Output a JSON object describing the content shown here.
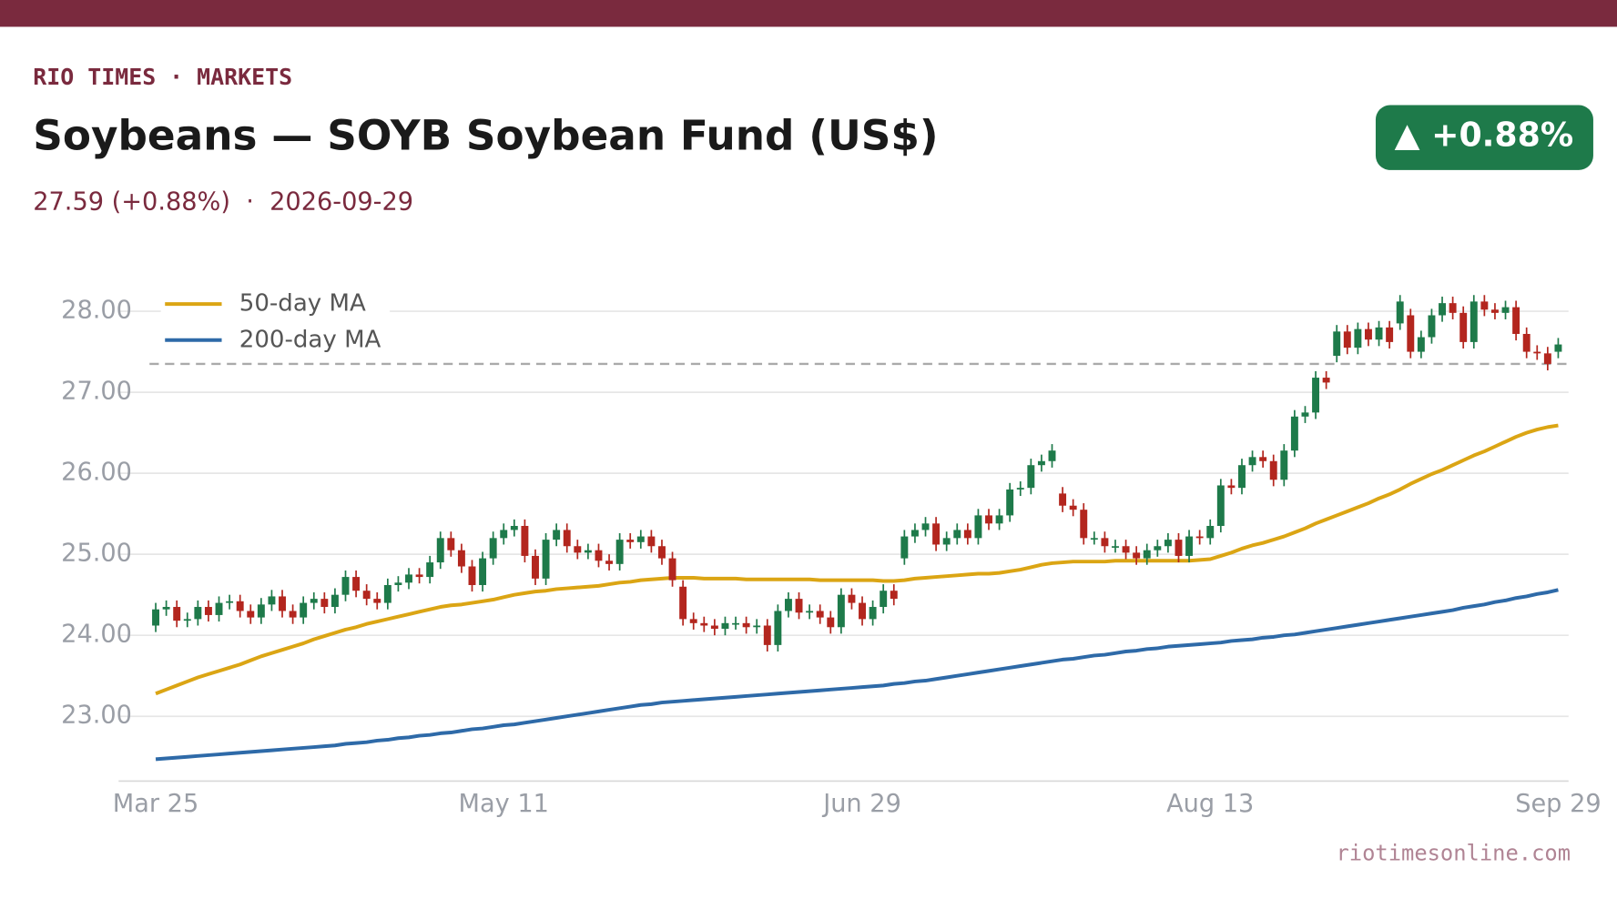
{
  "chart_data": {
    "type": "candlestick",
    "kicker": "RIO TIMES · MARKETS",
    "title": "Soybeans — SOYB Soybean Fund (US$)",
    "subtitle": "27.59 (+0.88%)  ·  2026-09-29",
    "badge": "▲ +0.88%",
    "source": "riotimesonline.com",
    "categories": [
      "Mar 25",
      null,
      null,
      null,
      null,
      null,
      null,
      null,
      null,
      null,
      null,
      null,
      null,
      null,
      null,
      null,
      null,
      null,
      null,
      null,
      null,
      null,
      null,
      null,
      null,
      null,
      null,
      null,
      null,
      null,
      null,
      null,
      null,
      "May 11",
      null,
      null,
      null,
      null,
      null,
      null,
      null,
      null,
      null,
      null,
      null,
      null,
      null,
      null,
      null,
      null,
      null,
      null,
      null,
      null,
      null,
      null,
      null,
      null,
      null,
      null,
      null,
      null,
      null,
      null,
      null,
      null,
      null,
      "Jun 29",
      null,
      null,
      null,
      null,
      null,
      null,
      null,
      null,
      null,
      null,
      null,
      null,
      null,
      null,
      null,
      null,
      null,
      null,
      null,
      null,
      null,
      null,
      null,
      null,
      null,
      null,
      null,
      null,
      null,
      null,
      null,
      null,
      "Aug 13",
      null,
      null,
      null,
      null,
      null,
      null,
      null,
      null,
      null,
      null,
      null,
      null,
      null,
      null,
      null,
      null,
      null,
      null,
      null,
      null,
      null,
      null,
      null,
      null,
      null,
      null,
      null,
      null,
      null,
      null,
      null,
      null,
      "Sep 29"
    ],
    "ohlc": {
      "up_color": "#1e7a4a",
      "down_color": "#b3261e",
      "open": [
        24.12,
        24.32,
        24.35,
        24.18,
        24.2,
        24.35,
        24.25,
        24.4,
        24.42,
        24.3,
        24.22,
        24.38,
        24.48,
        24.3,
        24.22,
        24.4,
        24.45,
        24.35,
        24.5,
        24.72,
        24.55,
        24.45,
        24.4,
        24.62,
        24.65,
        24.75,
        24.72,
        24.9,
        25.2,
        25.05,
        24.85,
        24.62,
        24.95,
        25.2,
        25.3,
        25.35,
        24.98,
        24.7,
        25.18,
        25.3,
        25.1,
        25.02,
        25.05,
        24.92,
        24.88,
        25.18,
        25.15,
        25.22,
        25.1,
        24.95,
        24.6,
        24.2,
        24.15,
        24.12,
        24.08,
        24.15,
        24.15,
        24.1,
        24.12,
        23.88,
        24.3,
        24.45,
        24.28,
        24.3,
        24.22,
        24.1,
        24.5,
        24.4,
        24.2,
        24.35,
        24.55,
        24.95,
        25.22,
        25.3,
        25.38,
        25.12,
        25.2,
        25.3,
        25.2,
        25.48,
        25.38,
        25.48,
        25.8,
        25.82,
        26.1,
        26.15,
        25.75,
        25.6,
        25.55,
        25.2,
        25.2,
        25.1,
        25.1,
        25.02,
        24.95,
        25.05,
        25.1,
        25.18,
        24.98,
        25.22,
        25.2,
        25.35,
        25.85,
        25.82,
        26.1,
        26.2,
        26.15,
        25.92,
        26.28,
        26.7,
        26.75,
        27.18,
        27.45,
        27.75,
        27.55,
        27.78,
        27.65,
        27.8,
        27.85,
        27.95,
        27.5,
        27.68,
        27.95,
        28.1,
        27.98,
        27.62,
        28.12,
        28.02,
        27.98,
        28.05,
        27.72,
        27.5,
        27.48,
        27.5
      ],
      "high": [
        24.4,
        24.43,
        24.43,
        24.28,
        24.43,
        24.43,
        24.48,
        24.5,
        24.5,
        24.38,
        24.46,
        24.56,
        24.56,
        24.38,
        24.48,
        24.53,
        24.53,
        24.58,
        24.8,
        24.8,
        24.63,
        24.53,
        24.7,
        24.73,
        24.83,
        24.83,
        24.98,
        25.28,
        25.28,
        25.13,
        24.93,
        25.03,
        25.28,
        25.38,
        25.43,
        25.43,
        25.06,
        25.26,
        25.38,
        25.38,
        25.18,
        25.13,
        25.13,
        25.0,
        25.26,
        25.26,
        25.3,
        25.3,
        25.18,
        25.03,
        24.68,
        24.28,
        24.23,
        24.2,
        24.23,
        24.23,
        24.23,
        24.2,
        24.2,
        24.38,
        24.53,
        24.53,
        24.38,
        24.38,
        24.3,
        24.58,
        24.58,
        24.48,
        24.43,
        24.63,
        24.63,
        25.3,
        25.38,
        25.46,
        25.46,
        25.28,
        25.38,
        25.38,
        25.56,
        25.56,
        25.56,
        25.88,
        25.9,
        26.18,
        26.23,
        26.36,
        25.83,
        25.68,
        25.63,
        25.28,
        25.28,
        25.18,
        25.18,
        25.1,
        25.13,
        25.18,
        25.26,
        25.26,
        25.3,
        25.3,
        25.43,
        25.93,
        25.93,
        26.18,
        26.28,
        26.28,
        26.23,
        26.36,
        26.78,
        26.83,
        27.26,
        27.26,
        27.83,
        27.83,
        27.86,
        27.86,
        27.88,
        27.88,
        28.2,
        28.03,
        27.76,
        28.03,
        28.18,
        28.18,
        28.06,
        28.2,
        28.2,
        28.1,
        28.13,
        28.13,
        27.8,
        27.58,
        27.56,
        27.67
      ],
      "low": [
        24.04,
        24.24,
        24.1,
        24.1,
        24.12,
        24.17,
        24.17,
        24.32,
        24.22,
        24.14,
        24.14,
        24.3,
        24.22,
        24.14,
        24.14,
        24.32,
        24.27,
        24.27,
        24.42,
        24.47,
        24.37,
        24.32,
        24.32,
        24.54,
        24.57,
        24.64,
        24.64,
        24.82,
        24.97,
        24.77,
        24.54,
        24.54,
        24.87,
        25.12,
        25.22,
        24.9,
        24.62,
        24.62,
        25.1,
        25.02,
        24.94,
        24.94,
        24.84,
        24.8,
        24.8,
        25.07,
        25.07,
        25.02,
        24.87,
        24.6,
        24.12,
        24.07,
        24.04,
        24.0,
        24.0,
        24.07,
        24.02,
        24.02,
        23.8,
        23.8,
        24.22,
        24.2,
        24.2,
        24.14,
        24.02,
        24.02,
        24.32,
        24.12,
        24.12,
        24.27,
        24.37,
        24.87,
        25.14,
        25.22,
        25.04,
        25.04,
        25.12,
        25.12,
        25.12,
        25.3,
        25.3,
        25.4,
        25.72,
        25.74,
        26.02,
        26.07,
        25.52,
        25.47,
        25.12,
        25.12,
        25.02,
        25.02,
        24.94,
        24.87,
        24.87,
        24.97,
        25.02,
        24.9,
        24.9,
        25.12,
        25.12,
        25.27,
        25.74,
        25.74,
        26.02,
        26.07,
        25.84,
        25.84,
        26.2,
        26.62,
        26.67,
        27.04,
        27.37,
        27.47,
        27.47,
        27.57,
        27.57,
        27.54,
        27.77,
        27.42,
        27.42,
        27.6,
        27.87,
        27.9,
        27.54,
        27.54,
        27.94,
        27.9,
        27.9,
        27.64,
        27.42,
        27.4,
        27.27,
        27.42
      ],
      "close": [
        24.32,
        24.35,
        24.18,
        24.2,
        24.35,
        24.25,
        24.4,
        24.42,
        24.3,
        24.22,
        24.38,
        24.48,
        24.3,
        24.22,
        24.4,
        24.45,
        24.35,
        24.5,
        24.72,
        24.55,
        24.45,
        24.4,
        24.62,
        24.65,
        24.75,
        24.72,
        24.9,
        25.2,
        25.05,
        24.85,
        24.62,
        24.95,
        25.2,
        25.3,
        25.35,
        24.98,
        24.7,
        25.18,
        25.3,
        25.1,
        25.02,
        25.05,
        24.92,
        24.88,
        25.18,
        25.15,
        25.22,
        25.1,
        24.95,
        24.68,
        24.2,
        24.15,
        24.12,
        24.08,
        24.15,
        24.15,
        24.1,
        24.12,
        23.88,
        24.3,
        24.45,
        24.28,
        24.3,
        24.22,
        24.1,
        24.5,
        24.4,
        24.2,
        24.35,
        24.55,
        24.45,
        25.22,
        25.3,
        25.38,
        25.12,
        25.2,
        25.3,
        25.2,
        25.48,
        25.38,
        25.48,
        25.8,
        25.82,
        26.1,
        26.15,
        26.28,
        25.6,
        25.55,
        25.2,
        25.2,
        25.1,
        25.1,
        25.02,
        24.95,
        25.05,
        25.1,
        25.18,
        24.98,
        25.22,
        25.2,
        25.35,
        25.85,
        25.82,
        26.1,
        26.2,
        26.15,
        25.92,
        26.28,
        26.7,
        26.75,
        27.18,
        27.12,
        27.75,
        27.55,
        27.78,
        27.65,
        27.8,
        27.62,
        28.12,
        27.5,
        27.68,
        27.95,
        28.1,
        27.98,
        27.62,
        28.12,
        28.02,
        27.98,
        28.05,
        27.72,
        27.5,
        27.48,
        27.35,
        27.59
      ]
    },
    "series": [
      {
        "name": "50-day MA",
        "color": "#dba514",
        "values": [
          23.28,
          23.33,
          23.38,
          23.43,
          23.48,
          23.52,
          23.56,
          23.6,
          23.64,
          23.69,
          23.74,
          23.78,
          23.82,
          23.86,
          23.9,
          23.95,
          23.99,
          24.03,
          24.07,
          24.1,
          24.14,
          24.17,
          24.2,
          24.23,
          24.26,
          24.29,
          24.32,
          24.35,
          24.37,
          24.38,
          24.4,
          24.42,
          24.44,
          24.47,
          24.5,
          24.52,
          24.54,
          24.55,
          24.57,
          24.58,
          24.59,
          24.6,
          24.61,
          24.63,
          24.65,
          24.66,
          24.68,
          24.69,
          24.7,
          24.71,
          24.71,
          24.71,
          24.7,
          24.7,
          24.7,
          24.7,
          24.69,
          24.69,
          24.69,
          24.69,
          24.69,
          24.69,
          24.69,
          24.68,
          24.68,
          24.68,
          24.68,
          24.68,
          24.68,
          24.67,
          24.67,
          24.68,
          24.7,
          24.71,
          24.72,
          24.73,
          24.74,
          24.75,
          24.76,
          24.76,
          24.77,
          24.79,
          24.81,
          24.84,
          24.87,
          24.89,
          24.9,
          24.91,
          24.91,
          24.91,
          24.91,
          24.92,
          24.92,
          24.92,
          24.92,
          24.92,
          24.92,
          24.92,
          24.92,
          24.93,
          24.94,
          24.98,
          25.02,
          25.07,
          25.11,
          25.14,
          25.18,
          25.22,
          25.27,
          25.32,
          25.38,
          25.43,
          25.48,
          25.53,
          25.58,
          25.63,
          25.69,
          25.74,
          25.8,
          25.87,
          25.93,
          25.99,
          26.04,
          26.1,
          26.16,
          26.22,
          26.27,
          26.33,
          26.39,
          26.45,
          26.5,
          26.54,
          26.57,
          26.59
        ]
      },
      {
        "name": "200-day MA",
        "color": "#2e6aa8",
        "values": [
          22.47,
          22.48,
          22.49,
          22.5,
          22.51,
          22.52,
          22.53,
          22.54,
          22.55,
          22.56,
          22.57,
          22.58,
          22.59,
          22.6,
          22.61,
          22.62,
          22.63,
          22.64,
          22.66,
          22.67,
          22.68,
          22.7,
          22.71,
          22.73,
          22.74,
          22.76,
          22.77,
          22.79,
          22.8,
          22.82,
          22.84,
          22.85,
          22.87,
          22.89,
          22.9,
          22.92,
          22.94,
          22.96,
          22.98,
          23.0,
          23.02,
          23.04,
          23.06,
          23.08,
          23.1,
          23.12,
          23.14,
          23.15,
          23.17,
          23.18,
          23.19,
          23.2,
          23.21,
          23.22,
          23.23,
          23.24,
          23.25,
          23.26,
          23.27,
          23.28,
          23.29,
          23.3,
          23.31,
          23.32,
          23.33,
          23.34,
          23.35,
          23.36,
          23.37,
          23.38,
          23.4,
          23.41,
          23.43,
          23.44,
          23.46,
          23.48,
          23.5,
          23.52,
          23.54,
          23.56,
          23.58,
          23.6,
          23.62,
          23.64,
          23.66,
          23.68,
          23.7,
          23.71,
          23.73,
          23.75,
          23.76,
          23.78,
          23.8,
          23.81,
          23.83,
          23.84,
          23.86,
          23.87,
          23.88,
          23.89,
          23.9,
          23.91,
          23.93,
          23.94,
          23.95,
          23.97,
          23.98,
          24.0,
          24.01,
          24.03,
          24.05,
          24.07,
          24.09,
          24.11,
          24.13,
          24.15,
          24.17,
          24.19,
          24.21,
          24.23,
          24.25,
          24.27,
          24.29,
          24.31,
          24.34,
          24.36,
          24.38,
          24.41,
          24.43,
          24.46,
          24.48,
          24.51,
          24.53,
          24.56
        ]
      }
    ],
    "prev_close": 27.35,
    "ylim": [
      22.2,
      28.25
    ],
    "yticks": [
      {
        "value": 23,
        "label": "23.00"
      },
      {
        "value": 24,
        "label": "24.00"
      },
      {
        "value": 25,
        "label": "25.00"
      },
      {
        "value": 26,
        "label": "26.00"
      },
      {
        "value": 27,
        "label": "27.00"
      },
      {
        "value": 28,
        "label": "28.00"
      }
    ],
    "grid": true,
    "legend": "upper-left"
  }
}
